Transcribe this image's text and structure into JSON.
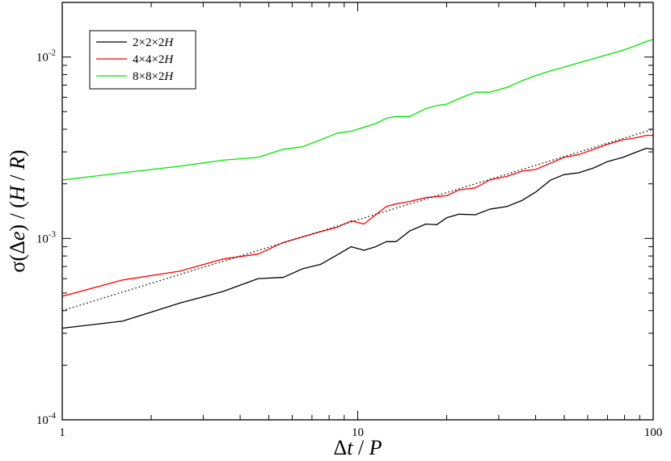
{
  "chart_data": {
    "type": "line",
    "title": "",
    "xlabel": "Δt / P",
    "ylabel": "σ(Δe) / (H / R)",
    "xscale": "log",
    "yscale": "log",
    "xlim": [
      1,
      100
    ],
    "ylim": [
      0.0001,
      0.02
    ],
    "x_ticks": [
      {
        "value": 1,
        "label": "1"
      },
      {
        "value": 10,
        "label": "10"
      },
      {
        "value": 100,
        "label": "100"
      }
    ],
    "y_ticks": [
      {
        "value": 0.0001,
        "label": "10",
        "exp": "-4"
      },
      {
        "value": 0.001,
        "label": "10",
        "exp": "-3"
      },
      {
        "value": 0.01,
        "label": "10",
        "exp": "-2"
      }
    ],
    "grid": false,
    "legend_position": "top-left",
    "series": [
      {
        "name": "2×2×2H",
        "color": "#000000",
        "style": "solid",
        "x": [
          1,
          1.6,
          2.5,
          3.5,
          4.6,
          5.6,
          6.5,
          7.5,
          8.5,
          9.5,
          10.5,
          11.5,
          12.5,
          13.5,
          15,
          17,
          18.5,
          20,
          22,
          25,
          28,
          32,
          36,
          40,
          45,
          50,
          56,
          63,
          70,
          79,
          88,
          95,
          100
        ],
        "y": [
          0.00032,
          0.00035,
          0.00044,
          0.00051,
          0.0006,
          0.00061,
          0.00068,
          0.00072,
          0.00081,
          0.0009,
          0.00086,
          0.0009,
          0.00096,
          0.00096,
          0.0011,
          0.0012,
          0.00119,
          0.0013,
          0.00136,
          0.00135,
          0.00145,
          0.0015,
          0.00162,
          0.0018,
          0.0021,
          0.00225,
          0.0023,
          0.00245,
          0.00265,
          0.0028,
          0.003,
          0.00314,
          0.0031
        ]
      },
      {
        "name": "4×4×2H",
        "color": "#ff0000",
        "style": "solid",
        "x": [
          1,
          1.6,
          2.5,
          3.5,
          4.6,
          5.6,
          6.5,
          7.5,
          8.5,
          9.5,
          10.5,
          11.5,
          12.5,
          13.5,
          15,
          17,
          18.5,
          20,
          22,
          25,
          28,
          32,
          36,
          40,
          45,
          50,
          56,
          63,
          70,
          79,
          88,
          95,
          100
        ],
        "y": [
          0.00048,
          0.00059,
          0.00066,
          0.00077,
          0.00082,
          0.00095,
          0.00102,
          0.00109,
          0.00115,
          0.00125,
          0.0012,
          0.00135,
          0.0015,
          0.00155,
          0.0016,
          0.00168,
          0.0017,
          0.00172,
          0.00185,
          0.0019,
          0.0021,
          0.0022,
          0.00235,
          0.0024,
          0.0026,
          0.0028,
          0.0029,
          0.0031,
          0.0033,
          0.0035,
          0.0036,
          0.0037,
          0.0037
        ]
      },
      {
        "name": "8×8×2H",
        "color": "#00e600",
        "style": "solid",
        "x": [
          1,
          1.6,
          2.5,
          3.5,
          4.6,
          5.6,
          6.5,
          7.5,
          8.5,
          9.5,
          10.5,
          11.5,
          12.5,
          13.5,
          15,
          17,
          18.5,
          20,
          22,
          25,
          28,
          32,
          36,
          40,
          45,
          50,
          56,
          63,
          70,
          79,
          88,
          95,
          100
        ],
        "y": [
          0.0021,
          0.0023,
          0.0025,
          0.0027,
          0.0028,
          0.0031,
          0.0032,
          0.0035,
          0.0038,
          0.0039,
          0.0041,
          0.0043,
          0.0046,
          0.0047,
          0.0047,
          0.0052,
          0.0054,
          0.0055,
          0.0059,
          0.0064,
          0.0064,
          0.0068,
          0.0074,
          0.0079,
          0.0084,
          0.0088,
          0.0093,
          0.0098,
          0.0103,
          0.0109,
          0.0116,
          0.0122,
          0.0125
        ]
      },
      {
        "name": "",
        "color": "#000000",
        "style": "dotted",
        "x": [
          1,
          100
        ],
        "y": [
          0.0004,
          0.004
        ]
      }
    ]
  }
}
